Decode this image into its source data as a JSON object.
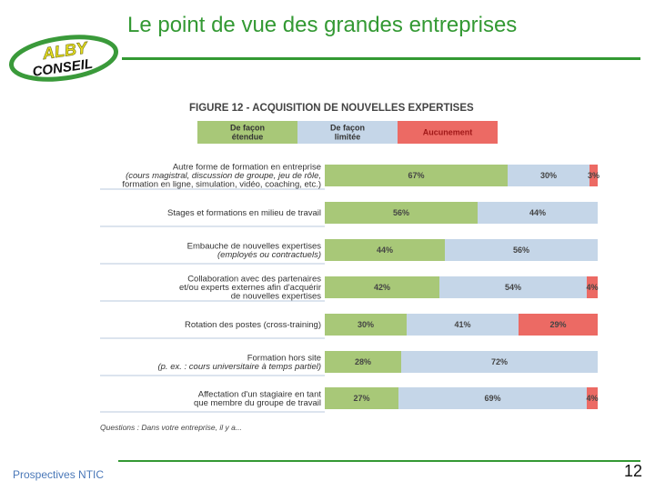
{
  "slide": {
    "title": "Le point de vue des grandes entreprises",
    "footer": "Prospectives NTIC",
    "page_number": "12"
  },
  "logo": {
    "top": "ALBY",
    "bottom": "CONSEIL"
  },
  "colors": {
    "accent": "#339933",
    "etendue": "#a8c878",
    "limitee": "#c5d6e8",
    "aucunement": "#ec6a64",
    "footer_text": "#4a78b8"
  },
  "chart_data": {
    "type": "bar",
    "orientation": "horizontal",
    "stacked": true,
    "title": "FIGURE 12 - ACQUISITION DE NOUVELLES EXPERTISES",
    "legend": [
      "De façon\nétendue",
      "De façon\nlimitée",
      "Aucunement"
    ],
    "legend_position": "top",
    "xlim": [
      0,
      100
    ],
    "categories": [
      {
        "lines": [
          "Autre forme de formation en entreprise",
          "(cours magistral, discussion de groupe, jeu de rôle,",
          "formation en ligne, simulation, vidéo, coaching, etc.)"
        ]
      },
      {
        "lines": [
          "Stages et formations en milieu de travail"
        ]
      },
      {
        "lines": [
          "Embauche de nouvelles expertises",
          "(employés ou contractuels)"
        ]
      },
      {
        "lines": [
          "Collaboration avec des partenaires",
          "et/ou experts externes afin d'acquérir",
          "de nouvelles expertises"
        ]
      },
      {
        "lines": [
          "Rotation des postes (cross-training)"
        ]
      },
      {
        "lines": [
          "Formation hors site",
          "(p. ex. : cours universitaire à temps partiel)"
        ]
      },
      {
        "lines": [
          "Affectation d'un stagiaire en tant",
          "que membre du groupe de travail"
        ]
      }
    ],
    "series": [
      {
        "name": "De façon étendue",
        "values": [
          67,
          56,
          44,
          42,
          30,
          28,
          27
        ],
        "labels": [
          "67%",
          "56%",
          "44%",
          "42%",
          "30%",
          "28%",
          "27%"
        ]
      },
      {
        "name": "De façon limitée",
        "values": [
          30,
          44,
          56,
          54,
          41,
          72,
          69
        ],
        "labels": [
          "30%",
          "44%",
          "56%",
          "54%",
          "41%",
          "72%",
          "69%"
        ]
      },
      {
        "name": "Aucunement",
        "values": [
          3,
          0,
          0,
          4,
          29,
          0,
          4
        ],
        "labels": [
          "3%",
          "",
          "",
          "4%",
          "29%",
          "",
          "4%"
        ]
      }
    ],
    "footnote": "Questions : Dans votre entreprise, il y a..."
  }
}
